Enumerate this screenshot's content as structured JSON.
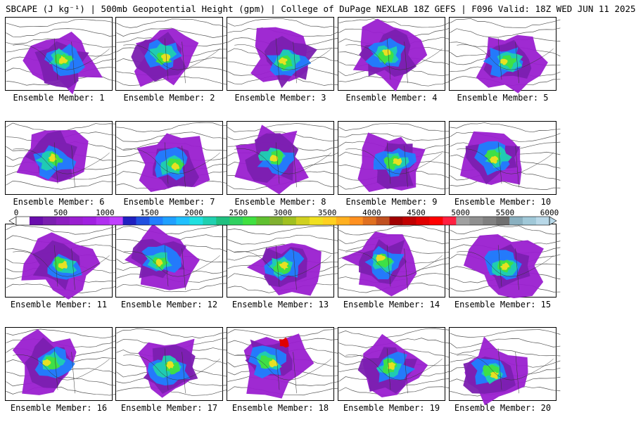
{
  "title": "SBCAPE (J kg⁻¹) | 500mb Geopotential Height (gpm) | College of DuPage NEXLAB 18Z GEFS | F096 Valid: 18Z WED JUN 11 2025",
  "members": [
    {
      "label": "Ensemble Member: 1"
    },
    {
      "label": "Ensemble Member: 2"
    },
    {
      "label": "Ensemble Member: 3"
    },
    {
      "label": "Ensemble Member: 4"
    },
    {
      "label": "Ensemble Member: 5"
    },
    {
      "label": "Ensemble Member: 6"
    },
    {
      "label": "Ensemble Member: 7"
    },
    {
      "label": "Ensemble Member: 8"
    },
    {
      "label": "Ensemble Member: 9"
    },
    {
      "label": "Ensemble Member: 10"
    },
    {
      "label": "Ensemble Member: 11"
    },
    {
      "label": "Ensemble Member: 12"
    },
    {
      "label": "Ensemble Member: 13"
    },
    {
      "label": "Ensemble Member: 14"
    },
    {
      "label": "Ensemble Member: 15"
    },
    {
      "label": "Ensemble Member: 16"
    },
    {
      "label": "Ensemble Member: 17"
    },
    {
      "label": "Ensemble Member: 18"
    },
    {
      "label": "Ensemble Member: 19"
    },
    {
      "label": "Ensemble Member: 20"
    }
  ],
  "colorbar": {
    "ticks": [
      "0",
      "500",
      "1000",
      "1500",
      "2000",
      "2500",
      "3000",
      "3500",
      "4000",
      "4500",
      "5000",
      "5500",
      "6000"
    ],
    "colors": [
      "#ffffff",
      "#6a0dad",
      "#7b1fb0",
      "#8c1fc0",
      "#9a1fd0",
      "#a020e0",
      "#b030f0",
      "#c040ff",
      "#2020c0",
      "#2050e0",
      "#2080ff",
      "#20a0ff",
      "#20c0ff",
      "#20e0e0",
      "#20d0b0",
      "#20c080",
      "#30d060",
      "#40e040",
      "#60c030",
      "#80b030",
      "#a0c020",
      "#d0d020",
      "#f0e020",
      "#ffd020",
      "#ffb020",
      "#ff9020",
      "#e07020",
      "#c05020",
      "#a00000",
      "#c00000",
      "#e00000",
      "#ff0000",
      "#ff2040",
      "#a0a0a0",
      "#909090",
      "#808080",
      "#707070",
      "#8ab0c0",
      "#a0c8d8",
      "#b8d8e8"
    ]
  }
}
